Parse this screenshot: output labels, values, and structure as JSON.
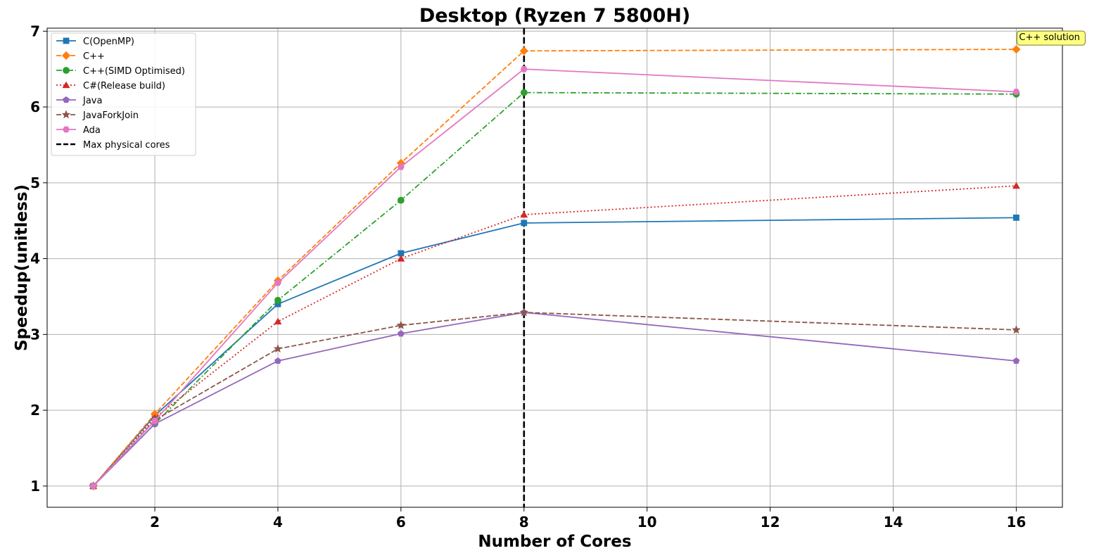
{
  "chart_data": {
    "type": "line",
    "title": "Desktop (Ryzen 7 5800H)",
    "xlabel": "Number of Cores",
    "ylabel": "Speedup(unitless)",
    "xlim": [
      0.25,
      16.75
    ],
    "ylim": [
      0.72,
      7.04
    ],
    "xticks": [
      2,
      4,
      6,
      8,
      10,
      12,
      14,
      16
    ],
    "yticks": [
      1,
      2,
      3,
      4,
      5,
      6,
      7
    ],
    "grid": true,
    "legend_position": "top-left",
    "x": [
      1,
      2,
      4,
      6,
      8,
      16
    ],
    "series": [
      {
        "name": "C(OpenMP)",
        "values": [
          1.0,
          1.93,
          3.4,
          4.07,
          4.47,
          4.54
        ],
        "color": "#1f77b4",
        "dash": "solid",
        "marker": "square"
      },
      {
        "name": "C++",
        "values": [
          1.0,
          1.95,
          3.71,
          5.26,
          6.74,
          6.76
        ],
        "color": "#ff7f0e",
        "dash": "dashed",
        "marker": "diamond"
      },
      {
        "name": "C++(SIMD Optimised)",
        "values": [
          1.0,
          1.82,
          3.45,
          4.77,
          6.19,
          6.17
        ],
        "color": "#2ca02c",
        "dash": "dashdot",
        "marker": "circle"
      },
      {
        "name": "C#(Release build)",
        "values": [
          1.0,
          1.9,
          3.17,
          4.0,
          4.58,
          4.96
        ],
        "color": "#d62728",
        "dash": "dotted",
        "marker": "triangle"
      },
      {
        "name": "Java",
        "values": [
          1.0,
          1.82,
          2.65,
          3.01,
          3.29,
          2.65
        ],
        "color": "#9467bd",
        "dash": "solid",
        "marker": "pentagon"
      },
      {
        "name": "JavaForkJoin",
        "values": [
          1.0,
          1.87,
          2.81,
          3.12,
          3.29,
          3.06
        ],
        "color": "#8c564b",
        "dash": "dashed",
        "marker": "star"
      },
      {
        "name": "Ada",
        "values": [
          1.0,
          1.86,
          3.68,
          5.21,
          6.5,
          6.2
        ],
        "color": "#e377c2",
        "dash": "solid",
        "marker": "hexagon"
      }
    ],
    "vline": {
      "x": 8,
      "name": "Max physical cores",
      "color": "#000000"
    },
    "annotation": {
      "text": "C++ solution",
      "x": 16,
      "y": 6.76,
      "bg": "#ffff80"
    }
  }
}
